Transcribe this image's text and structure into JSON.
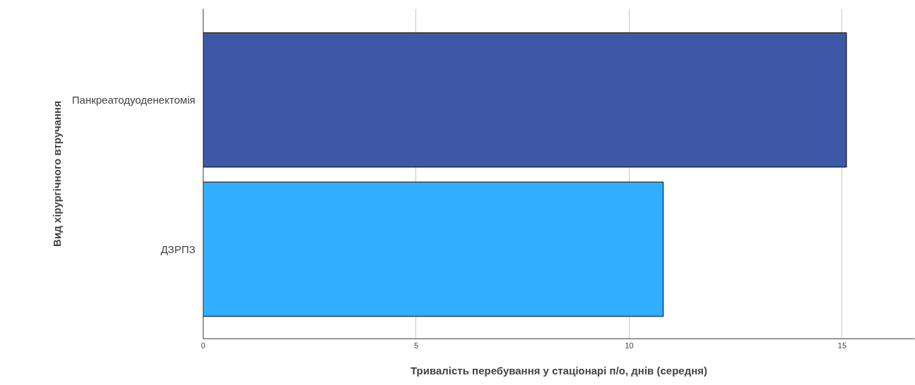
{
  "chart_data": {
    "type": "bar",
    "orientation": "horizontal",
    "xlabel": "Тривалість перебування у стаціонарі п/о, днів (середня)",
    "ylabel": "Вид хірургічного втручання",
    "categories": [
      "Панкреатодуоденектомія",
      "ДЗРПЗ"
    ],
    "values": [
      15.1,
      10.8
    ],
    "colors": [
      "#3e58a8",
      "#31aefe"
    ],
    "xlim": [
      0,
      16.7
    ],
    "xticks": [
      0,
      5,
      10,
      15
    ],
    "grid": "x"
  }
}
